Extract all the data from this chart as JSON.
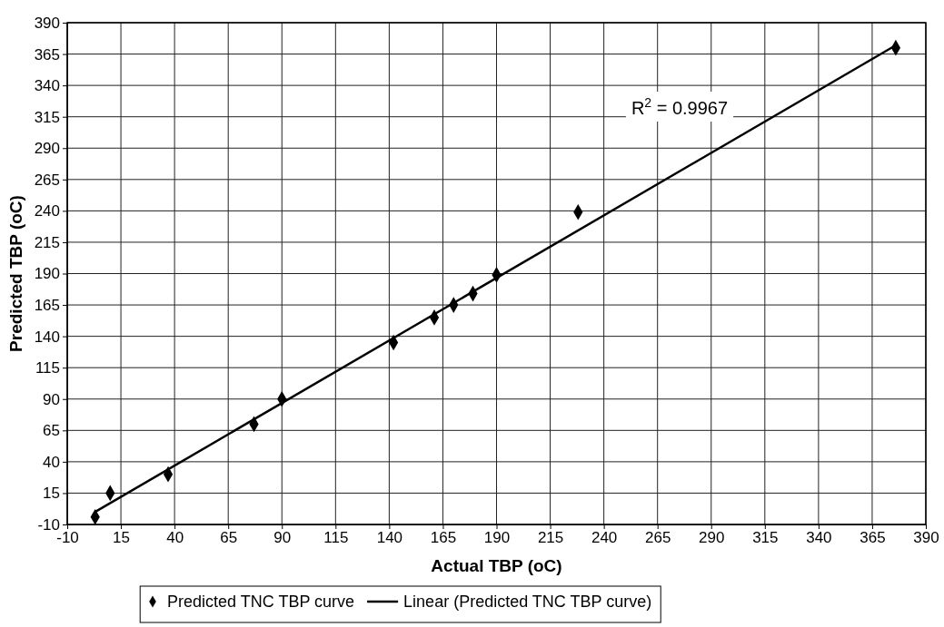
{
  "chart_data": {
    "type": "scatter",
    "xlabel": "Actual TBP (oC)",
    "ylabel": "Predicted TBP (oC)",
    "xlim": [
      -10,
      390
    ],
    "ylim": [
      -10,
      390
    ],
    "xticks": [
      -10,
      15,
      40,
      65,
      90,
      115,
      140,
      165,
      190,
      215,
      240,
      265,
      290,
      315,
      340,
      365,
      390
    ],
    "yticks": [
      -10,
      15,
      40,
      65,
      90,
      115,
      140,
      165,
      190,
      215,
      240,
      265,
      290,
      315,
      340,
      365,
      390
    ],
    "grid": true,
    "legend": "bottom",
    "marker": "diamond",
    "annotations": [
      "R$^{2}$ = 0.9967"
    ],
    "series": [
      {
        "name": "Predicted TNC TBP curve",
        "color": "#000000",
        "x": [
          3,
          10,
          37,
          77,
          90,
          142,
          161,
          170,
          179,
          190,
          228,
          376
        ],
        "values": [
          -4,
          15,
          30,
          70,
          90,
          135,
          155,
          165,
          174,
          189,
          239,
          370
        ]
      },
      {
        "name": "Linear (Predicted TNC TBP curve)",
        "type": "line",
        "color": "#000000",
        "marker": "none",
        "line_style": "solid",
        "x": [
          3,
          375
        ],
        "values": [
          0,
          371
        ]
      }
    ]
  }
}
